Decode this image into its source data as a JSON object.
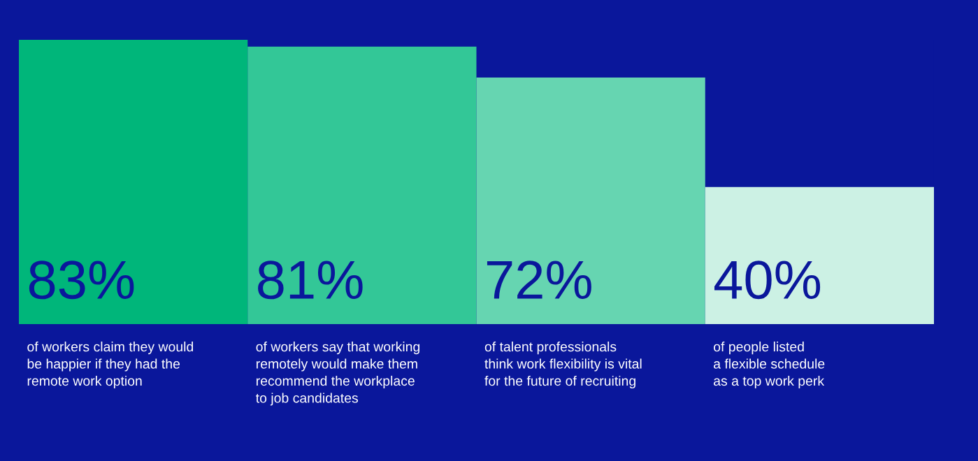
{
  "chart_data": {
    "type": "bar",
    "categories": [
      "of workers claim they would\nbe happier if they had the\nremote work option",
      "of workers say that working\nremotely would make them\nrecommend the workplace\nto job candidates",
      "of talent professionals\nthink work flexibility is vital\nfor the future of recruiting",
      "of people listed\na flexible schedule\nas a top work perk"
    ],
    "values": [
      83,
      81,
      72,
      40
    ],
    "colors": [
      "#00b67a",
      "#33c797",
      "#66d5b1",
      "#ccf1e4"
    ],
    "value_labels": [
      "83%",
      "81%",
      "72%",
      "40%"
    ]
  }
}
